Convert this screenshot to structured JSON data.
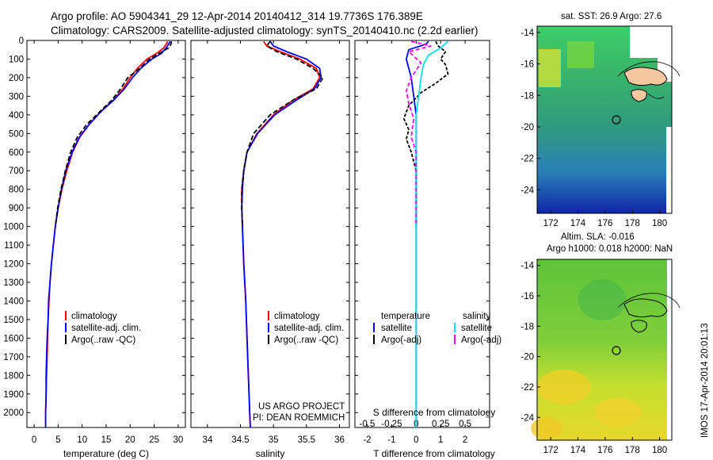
{
  "header": {
    "line1": "Argo profile: AO 5904341_29 12-Apr-2014 20140412_314 19.7736S 176.389E",
    "line2": "Climatology: CARS2009. Satellite-adjusted climatology: synTS_20140410.nc (2.2d earlier)"
  },
  "colors": {
    "climatology": "#ff0000",
    "satellite": "#0000ff",
    "argo": "#000000",
    "sal_satellite": "#00e5ee",
    "sal_argo": "#ff00ff"
  },
  "depth_axis": {
    "ticks": [
      "0",
      "100",
      "200",
      "300",
      "400",
      "500",
      "600",
      "700",
      "800",
      "900",
      "1000",
      "1100",
      "1200",
      "1300",
      "1400",
      "1500",
      "1600",
      "1700",
      "1800",
      "1900",
      "2000"
    ],
    "range": [
      0,
      2080
    ]
  },
  "chart_data": [
    {
      "type": "line",
      "name": "temperature",
      "xlabel": "temperature (deg C)",
      "xlim": [
        -1.5,
        31.5
      ],
      "xticks": [
        "0",
        "5",
        "10",
        "15",
        "20",
        "25",
        "30"
      ],
      "legend": [
        "climatology",
        "satellite-adj. clim.",
        "Argo(..raw -QC)"
      ],
      "series": [
        {
          "name": "climatology",
          "color": "#ff0000",
          "points": [
            [
              27.8,
              5
            ],
            [
              27.5,
              20
            ],
            [
              27.0,
              40
            ],
            [
              25.5,
              70
            ],
            [
              23.5,
              100
            ],
            [
              21.5,
              150
            ],
            [
              20.0,
              200
            ],
            [
              18.5,
              260
            ],
            [
              16.5,
              320
            ],
            [
              14.0,
              380
            ],
            [
              11.5,
              450
            ],
            [
              9.5,
              520
            ],
            [
              8.0,
              600
            ],
            [
              6.8,
              700
            ],
            [
              5.8,
              800
            ],
            [
              5.0,
              900
            ],
            [
              4.4,
              1000
            ],
            [
              4.0,
              1100
            ],
            [
              3.6,
              1200
            ],
            [
              3.3,
              1300
            ],
            [
              3.1,
              1400
            ],
            [
              2.9,
              1500
            ],
            [
              2.8,
              1600
            ],
            [
              2.7,
              1700
            ],
            [
              2.6,
              1800
            ],
            [
              2.5,
              1900
            ],
            [
              2.4,
              2000
            ],
            [
              2.4,
              2080
            ]
          ]
        },
        {
          "name": "satellite-adj. clim.",
          "color": "#0000ff",
          "points": [
            [
              28.3,
              5
            ],
            [
              28.0,
              20
            ],
            [
              27.5,
              40
            ],
            [
              26.5,
              70
            ],
            [
              24.5,
              100
            ],
            [
              22.2,
              150
            ],
            [
              20.5,
              200
            ],
            [
              18.8,
              260
            ],
            [
              16.6,
              320
            ],
            [
              14.0,
              380
            ],
            [
              11.5,
              450
            ],
            [
              9.4,
              520
            ],
            [
              7.9,
              600
            ],
            [
              6.6,
              700
            ],
            [
              5.7,
              800
            ],
            [
              5.0,
              900
            ],
            [
              4.4,
              1000
            ],
            [
              4.0,
              1100
            ],
            [
              3.6,
              1200
            ],
            [
              3.3,
              1300
            ],
            [
              3.0,
              1400
            ],
            [
              2.9,
              1500
            ],
            [
              2.7,
              1600
            ],
            [
              2.6,
              1700
            ],
            [
              2.5,
              1800
            ],
            [
              2.5,
              1900
            ],
            [
              2.4,
              2000
            ],
            [
              2.4,
              2080
            ]
          ]
        },
        {
          "name": "Argo(..raw -QC)",
          "color": "#000000",
          "dash": "6,3",
          "points": [
            [
              28.6,
              5
            ],
            [
              28.5,
              20
            ],
            [
              28.0,
              40
            ],
            [
              26.0,
              70
            ],
            [
              24.0,
              100
            ],
            [
              22.0,
              150
            ],
            [
              19.5,
              200
            ],
            [
              18.0,
              260
            ],
            [
              16.2,
              320
            ],
            [
              13.8,
              380
            ],
            [
              11.0,
              450
            ],
            [
              9.0,
              520
            ],
            [
              7.6,
              600
            ],
            [
              6.5,
              700
            ],
            [
              5.6,
              800
            ],
            [
              4.9,
              900
            ],
            [
              4.4,
              1000
            ]
          ]
        }
      ]
    },
    {
      "type": "line",
      "name": "salinity",
      "xlabel": "salinity",
      "xlim": [
        33.75,
        36.15
      ],
      "xticks": [
        "34",
        "34.5",
        "35",
        "35.5",
        "36"
      ],
      "legend": [
        "climatology",
        "satellite-adj. clim.",
        "Argo(..raw -QC)"
      ],
      "series": [
        {
          "name": "climatology",
          "color": "#ff0000",
          "points": [
            [
              34.85,
              5
            ],
            [
              34.9,
              30
            ],
            [
              35.1,
              60
            ],
            [
              35.4,
              100
            ],
            [
              35.65,
              150
            ],
            [
              35.7,
              200
            ],
            [
              35.6,
              260
            ],
            [
              35.3,
              320
            ],
            [
              35.0,
              400
            ],
            [
              34.75,
              500
            ],
            [
              34.6,
              600
            ],
            [
              34.55,
              700
            ],
            [
              34.52,
              800
            ],
            [
              34.52,
              900
            ],
            [
              34.53,
              1000
            ],
            [
              34.55,
              1200
            ],
            [
              34.58,
              1400
            ],
            [
              34.6,
              1600
            ],
            [
              34.62,
              1800
            ],
            [
              34.64,
              2000
            ],
            [
              34.65,
              2080
            ]
          ]
        },
        {
          "name": "satellite-adj. clim.",
          "color": "#0000ff",
          "points": [
            [
              34.95,
              5
            ],
            [
              35.0,
              30
            ],
            [
              35.2,
              60
            ],
            [
              35.5,
              100
            ],
            [
              35.7,
              150
            ],
            [
              35.72,
              200
            ],
            [
              35.62,
              260
            ],
            [
              35.35,
              320
            ],
            [
              35.02,
              400
            ],
            [
              34.76,
              500
            ],
            [
              34.6,
              600
            ],
            [
              34.55,
              700
            ],
            [
              34.53,
              800
            ],
            [
              34.52,
              900
            ],
            [
              34.53,
              1000
            ],
            [
              34.55,
              1200
            ],
            [
              34.58,
              1400
            ],
            [
              34.6,
              1600
            ],
            [
              34.62,
              1800
            ],
            [
              34.64,
              2000
            ],
            [
              34.65,
              2080
            ]
          ]
        },
        {
          "name": "Argo(..raw -QC)",
          "color": "#000000",
          "dash": "6,3",
          "points": [
            [
              34.95,
              5
            ],
            [
              34.9,
              30
            ],
            [
              35.05,
              60
            ],
            [
              35.35,
              100
            ],
            [
              35.6,
              150
            ],
            [
              35.75,
              200
            ],
            [
              35.65,
              260
            ],
            [
              35.3,
              320
            ],
            [
              34.95,
              400
            ],
            [
              34.7,
              500
            ],
            [
              34.6,
              600
            ],
            [
              34.55,
              700
            ],
            [
              34.52,
              800
            ],
            [
              34.52,
              900
            ],
            [
              34.53,
              1000
            ]
          ]
        }
      ]
    },
    {
      "type": "line",
      "name": "difference",
      "xlabel": "T difference from climatology",
      "xlabel_top": "S difference from climatology",
      "xlim": [
        -2.5,
        3.0
      ],
      "xticks": [
        "-2",
        "-1",
        "0",
        "1",
        "2"
      ],
      "xticks_top": [
        "-0.5",
        "-0.25",
        "0",
        "0.25",
        "0.5"
      ],
      "legend": {
        "temperature_title": "temperature",
        "salinity_title": "salinity",
        "temp_satellite": "satellite",
        "temp_argo": "Argo(-adj)",
        "sal_satellite": "satellite",
        "sal_argo": "Argo(-adj)"
      },
      "series": [
        {
          "name": "T satellite",
          "color": "#0000ff",
          "points": [
            [
              0.5,
              5
            ],
            [
              0.4,
              20
            ],
            [
              -0.3,
              50
            ],
            [
              -0.4,
              100
            ],
            [
              -0.3,
              150
            ],
            [
              -0.2,
              200
            ],
            [
              -0.1,
              300
            ],
            [
              0.0,
              400
            ],
            [
              0.0,
              600
            ],
            [
              0.0,
              800
            ],
            [
              0.0,
              1000
            ],
            [
              0.0,
              1200
            ],
            [
              0.0,
              1500
            ],
            [
              0.0,
              1800
            ],
            [
              0.0,
              2080
            ]
          ]
        },
        {
          "name": "T Argo(-adj)",
          "color": "#000000",
          "dash": "4,2",
          "points": [
            [
              0.8,
              5
            ],
            [
              0.9,
              30
            ],
            [
              1.2,
              60
            ],
            [
              1.0,
              100
            ],
            [
              1.2,
              130
            ],
            [
              1.3,
              180
            ],
            [
              0.8,
              230
            ],
            [
              0.2,
              280
            ],
            [
              -0.3,
              350
            ],
            [
              -0.5,
              420
            ],
            [
              -0.3,
              480
            ],
            [
              -0.4,
              530
            ],
            [
              -0.2,
              600
            ],
            [
              0.0,
              700
            ],
            [
              0.0,
              800
            ],
            [
              0.0,
              900
            ],
            [
              0.0,
              1000
            ]
          ]
        },
        {
          "name": "S satellite",
          "color": "#00e5ee",
          "points": [
            [
              1.3,
              5
            ],
            [
              1.0,
              40
            ],
            [
              0.5,
              80
            ],
            [
              0.3,
              130
            ],
            [
              0.2,
              200
            ],
            [
              0.1,
              300
            ],
            [
              0.0,
              400
            ],
            [
              0.0,
              600
            ],
            [
              0.0,
              800
            ],
            [
              0.0,
              1000
            ],
            [
              0.0,
              1300
            ],
            [
              0.0,
              1600
            ],
            [
              0.0,
              2080
            ]
          ]
        },
        {
          "name": "S Argo(-adj)",
          "color": "#ff00ff",
          "dash": "5,3",
          "points": [
            [
              -0.2,
              5
            ],
            [
              0.6,
              30
            ],
            [
              -0.3,
              60
            ],
            [
              0.2,
              120
            ],
            [
              -0.2,
              200
            ],
            [
              -0.4,
              270
            ],
            [
              -0.3,
              340
            ],
            [
              -0.1,
              420
            ],
            [
              -0.2,
              520
            ],
            [
              0.0,
              600
            ],
            [
              0.0,
              700
            ],
            [
              0.0,
              800
            ],
            [
              0.0,
              900
            ],
            [
              0.0,
              1000
            ]
          ]
        }
      ]
    }
  ],
  "footnote": {
    "line1": "US ARGO PROJECT",
    "line2": "PI: DEAN ROEMMICH"
  },
  "maps": {
    "sst_title": "sat. SST: 26.9  Argo: 27.6",
    "sla_title1": "Altim. SLA: -0.016",
    "sla_title2": "Argo h1000: 0.018  h2000: NaN",
    "lat_ticks": [
      "-14",
      "-16",
      "-18",
      "-20",
      "-22",
      "-24"
    ],
    "lon_ticks": [
      "172",
      "174",
      "176",
      "178",
      "180"
    ],
    "lat_range": [
      -25.5,
      -13.6
    ],
    "lon_range": [
      171.0,
      180.9
    ],
    "argo_position": {
      "lon": 176.389,
      "lat": -19.7736
    }
  },
  "watermark": "IMOS 17-Apr-2014 20:01:13"
}
